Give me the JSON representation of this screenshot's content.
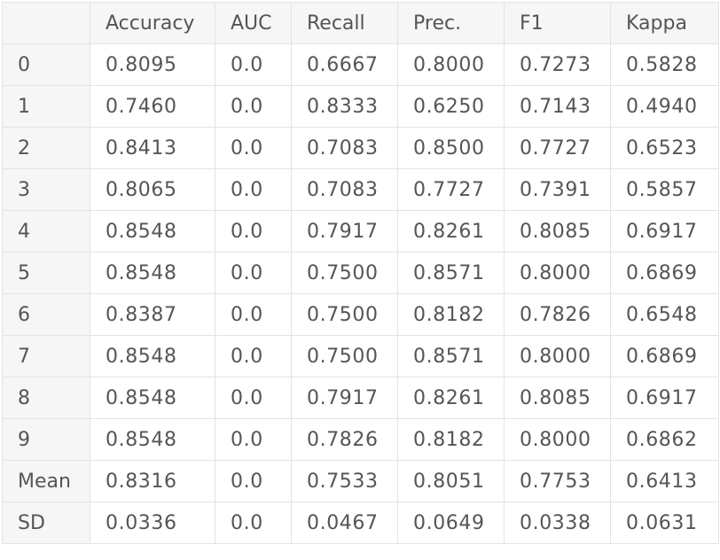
{
  "table": {
    "columns": [
      "",
      "Accuracy",
      "AUC",
      "Recall",
      "Prec.",
      "F1",
      "Kappa"
    ],
    "rows": [
      {
        "label": "0",
        "values": [
          "0.8095",
          "0.0",
          "0.6667",
          "0.8000",
          "0.7273",
          "0.5828"
        ]
      },
      {
        "label": "1",
        "values": [
          "0.7460",
          "0.0",
          "0.8333",
          "0.6250",
          "0.7143",
          "0.4940"
        ]
      },
      {
        "label": "2",
        "values": [
          "0.8413",
          "0.0",
          "0.7083",
          "0.8500",
          "0.7727",
          "0.6523"
        ]
      },
      {
        "label": "3",
        "values": [
          "0.8065",
          "0.0",
          "0.7083",
          "0.7727",
          "0.7391",
          "0.5857"
        ]
      },
      {
        "label": "4",
        "values": [
          "0.8548",
          "0.0",
          "0.7917",
          "0.8261",
          "0.8085",
          "0.6917"
        ]
      },
      {
        "label": "5",
        "values": [
          "0.8548",
          "0.0",
          "0.7500",
          "0.8571",
          "0.8000",
          "0.6869"
        ]
      },
      {
        "label": "6",
        "values": [
          "0.8387",
          "0.0",
          "0.7500",
          "0.8182",
          "0.7826",
          "0.6548"
        ]
      },
      {
        "label": "7",
        "values": [
          "0.8548",
          "0.0",
          "0.7500",
          "0.8571",
          "0.8000",
          "0.6869"
        ]
      },
      {
        "label": "8",
        "values": [
          "0.8548",
          "0.0",
          "0.7917",
          "0.8261",
          "0.8085",
          "0.6917"
        ]
      },
      {
        "label": "9",
        "values": [
          "0.8548",
          "0.0",
          "0.7826",
          "0.8182",
          "0.8000",
          "0.6862"
        ]
      },
      {
        "label": "Mean",
        "values": [
          "0.8316",
          "0.0",
          "0.7533",
          "0.8051",
          "0.7753",
          "0.6413"
        ]
      },
      {
        "label": "SD",
        "values": [
          "0.0336",
          "0.0",
          "0.0467",
          "0.0649",
          "0.0338",
          "0.0631"
        ]
      }
    ]
  }
}
